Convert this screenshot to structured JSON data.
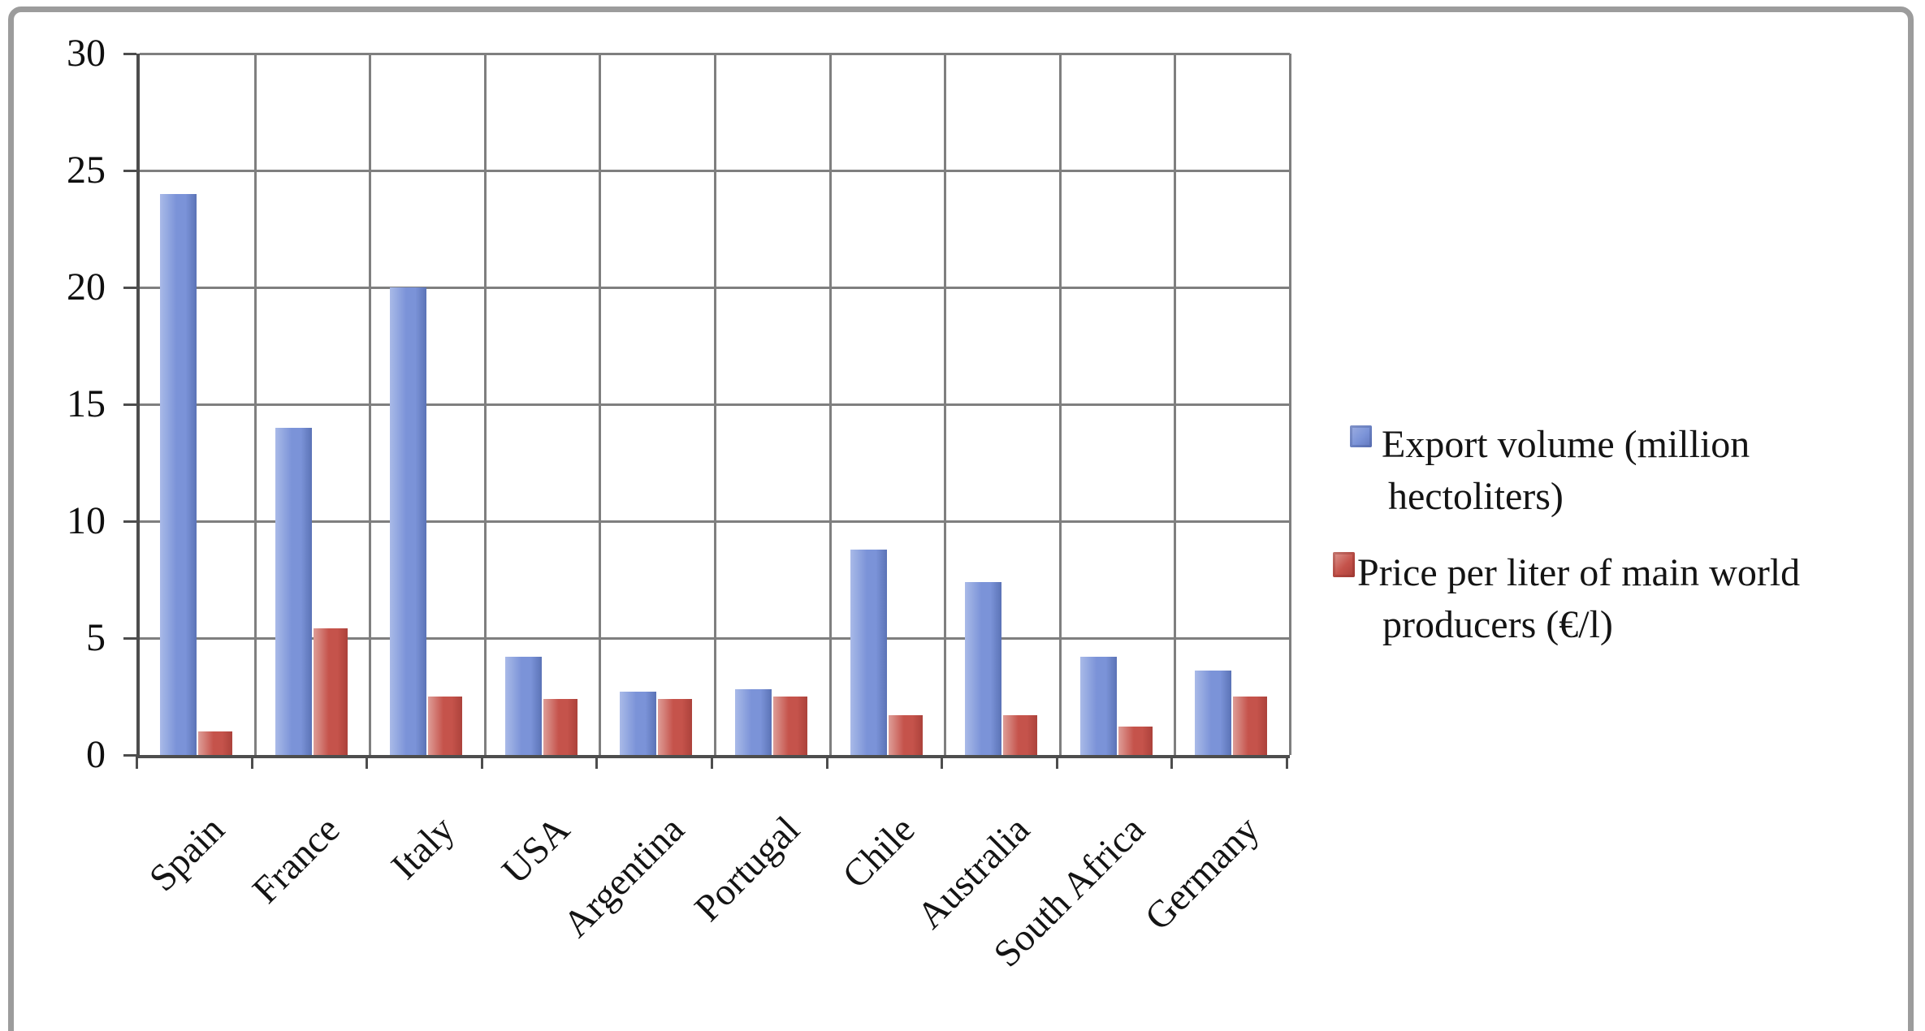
{
  "figure": {
    "kind": "bar-chart-screenshot",
    "background": "#ffffff",
    "frame_color": "#9c9c9c"
  },
  "chart_data": {
    "type": "bar",
    "title": "",
    "xlabel": "",
    "ylabel": "",
    "categories": [
      "Spain",
      "France",
      "Italy",
      "USA",
      "Argentina",
      "Portugal",
      "Chile",
      "Australia",
      "South Africa",
      "Germany"
    ],
    "series": [
      {
        "name": "Export volume (million hectoliters)",
        "values": [
          24,
          14,
          20,
          4.2,
          2.7,
          2.8,
          8.8,
          7.4,
          4.2,
          3.6
        ],
        "color": "#7b93d8",
        "color_light": "#a9bae8",
        "color_dark": "#5b73b6"
      },
      {
        "name": "Price per liter of main world producers (€/l)",
        "values": [
          1.0,
          5.4,
          2.5,
          2.4,
          2.4,
          2.5,
          1.7,
          1.7,
          1.2,
          2.5
        ],
        "color": "#c5534b",
        "color_light": "#de9d97",
        "color_dark": "#ac423b"
      }
    ],
    "ylim": [
      0,
      30
    ],
    "ytick_step": 5,
    "yticks": [
      "0",
      "5",
      "10",
      "15",
      "20",
      "25",
      "30"
    ],
    "grid": true,
    "gridline_color": "#7f7f7f",
    "axis_color": "#4d4d4d",
    "legend_position": "right",
    "legend": [
      {
        "series": "export",
        "lines": [
          "Export volume (million",
          "hectoliters)"
        ]
      },
      {
        "series": "price",
        "lines": [
          "Price per liter of main world",
          "producers (€/l)"
        ]
      }
    ]
  }
}
